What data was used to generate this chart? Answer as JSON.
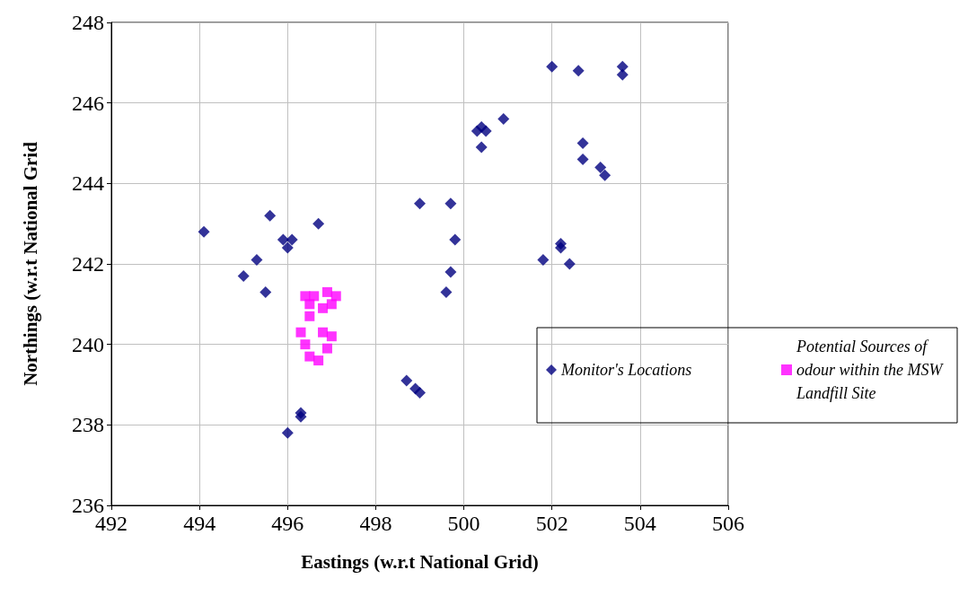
{
  "chart_data": {
    "type": "scatter",
    "xlabel": "Eastings (w.r.t National Grid)",
    "ylabel": "Northings (w.r.t National Grid",
    "xlim": [
      492,
      506
    ],
    "xticks": [
      492,
      494,
      496,
      498,
      500,
      502,
      504,
      506
    ],
    "ylim": [
      236,
      248
    ],
    "yticks": [
      236,
      238,
      240,
      242,
      244,
      246,
      248
    ],
    "grid": true,
    "legend": "right",
    "series": [
      {
        "name": "Monitor's Locations",
        "color": "#000080",
        "marker": "diamond",
        "x": [
          494.1,
          495.0,
          495.3,
          495.5,
          495.6,
          495.9,
          496.0,
          496.1,
          496.7,
          496.3,
          496.3,
          496.0,
          499.0,
          499.7,
          499.8,
          499.7,
          499.6,
          501.8,
          502.2,
          502.2,
          502.4,
          498.7,
          498.9,
          499.0,
          500.3,
          500.4,
          500.5,
          500.4,
          500.9,
          502.0,
          502.6,
          503.6,
          503.6,
          502.7,
          502.7,
          503.1,
          503.2
        ],
        "values": [
          242.8,
          241.7,
          242.1,
          241.3,
          243.2,
          242.6,
          242.4,
          242.6,
          243.0,
          238.3,
          238.2,
          237.8,
          243.5,
          243.5,
          242.6,
          241.8,
          241.3,
          242.1,
          242.5,
          242.4,
          242.0,
          239.1,
          238.9,
          238.8,
          245.3,
          245.4,
          245.3,
          244.9,
          245.6,
          246.9,
          246.8,
          246.9,
          246.7,
          245.0,
          244.6,
          244.4,
          244.2
        ]
      },
      {
        "name": "Potential Sources of odour within the MSW Landfill Site",
        "color": "#ff00ff",
        "marker": "square",
        "x": [
          496.4,
          496.6,
          496.9,
          497.1,
          496.5,
          496.8,
          497.0,
          496.5,
          496.3,
          496.8,
          497.0,
          496.4,
          496.9,
          496.5,
          496.7
        ],
        "values": [
          241.2,
          241.2,
          241.3,
          241.2,
          241.0,
          240.9,
          241.0,
          240.7,
          240.3,
          240.3,
          240.2,
          240.0,
          239.9,
          239.7,
          239.6
        ]
      }
    ]
  }
}
